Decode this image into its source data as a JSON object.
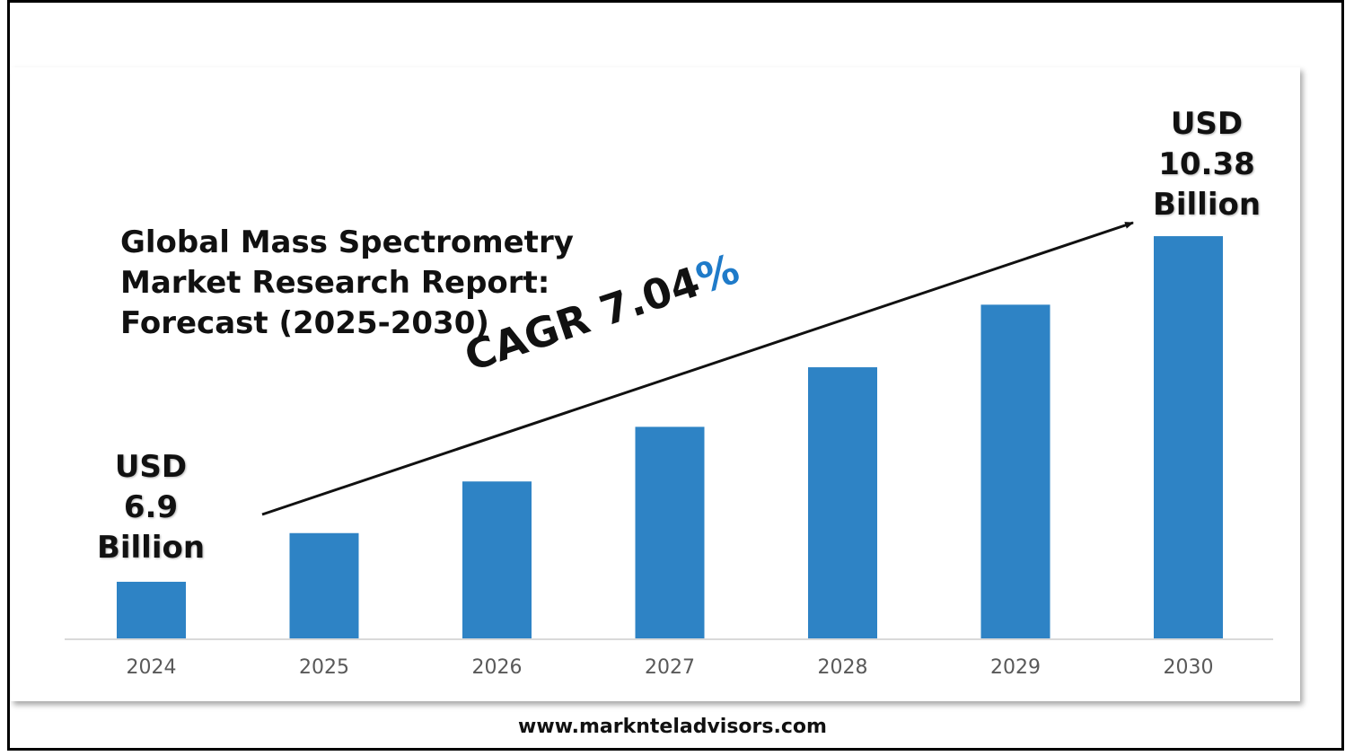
{
  "chart_data": {
    "type": "bar",
    "title": "Global Mass Spectrometry\nMarket Research Report:\nForecast (2025-2030)",
    "categories": [
      "2024",
      "2025",
      "2026",
      "2027",
      "2028",
      "2029",
      "2030"
    ],
    "values": [
      6.9,
      7.39,
      7.91,
      8.46,
      9.06,
      9.69,
      10.38
    ],
    "unit": "USD Billion",
    "ylim": [
      6.33,
      12.08
    ],
    "xlabel": "",
    "ylabel": "",
    "grid": false,
    "bar_color": "#2e83c5",
    "annotations": {
      "start_label": {
        "line1": "USD",
        "line2": "6.9",
        "line3": "Billion"
      },
      "end_label": {
        "line1": "USD",
        "line2": "10.38",
        "line3": "Billion"
      },
      "cagr_text": "CAGR 7.04",
      "cagr_pct": "%"
    }
  },
  "footer": "www.marknteladvisors.com"
}
